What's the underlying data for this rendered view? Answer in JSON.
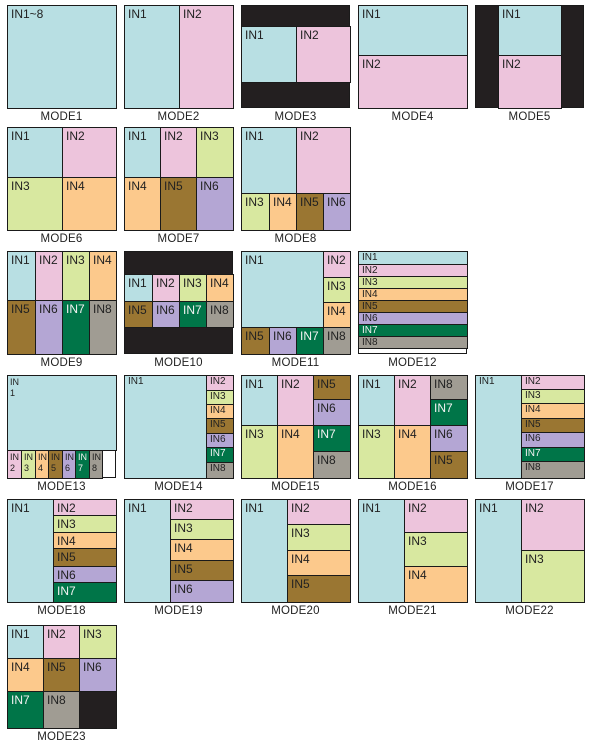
{
  "colors": {
    "IN1": "#b8dfe3",
    "IN2": "#edc4dc",
    "IN3": "#d8e8a0",
    "IN4": "#fcc98c",
    "IN5": "#9a7632",
    "IN6": "#b4a6d4",
    "IN7": "#007548",
    "IN8": "#a09c93",
    "black": "#231f20"
  },
  "modes": [
    {
      "caption": "MODE1",
      "cells": [
        {
          "label": "IN1~8",
          "color": "IN1"
        }
      ]
    },
    {
      "caption": "MODE2",
      "cells": [
        {
          "label": "IN1",
          "color": "IN1"
        },
        {
          "label": "IN2",
          "color": "IN2"
        }
      ]
    },
    {
      "caption": "MODE3",
      "cells": [
        {
          "label": "IN1",
          "color": "IN1"
        },
        {
          "label": "IN2",
          "color": "IN2"
        }
      ]
    },
    {
      "caption": "MODE4",
      "cells": [
        {
          "label": "IN1",
          "color": "IN1"
        },
        {
          "label": "IN2",
          "color": "IN2"
        }
      ]
    },
    {
      "caption": "MODE5",
      "cells": [
        {
          "label": "IN1",
          "color": "IN1"
        },
        {
          "label": "IN2",
          "color": "IN2"
        }
      ]
    },
    {
      "caption": "MODE6",
      "cells": [
        {
          "label": "IN1",
          "color": "IN1"
        },
        {
          "label": "IN2",
          "color": "IN2"
        },
        {
          "label": "IN3",
          "color": "IN3"
        },
        {
          "label": "IN4",
          "color": "IN4"
        }
      ]
    },
    {
      "caption": "MODE7",
      "cells": [
        {
          "label": "IN1",
          "color": "IN1"
        },
        {
          "label": "IN2",
          "color": "IN2"
        },
        {
          "label": "IN3",
          "color": "IN3"
        },
        {
          "label": "IN4",
          "color": "IN4"
        },
        {
          "label": "IN5",
          "color": "IN5"
        },
        {
          "label": "IN6",
          "color": "IN6"
        }
      ]
    },
    {
      "caption": "MODE8",
      "cells": [
        {
          "label": "IN1",
          "color": "IN1"
        },
        {
          "label": "IN2",
          "color": "IN2"
        },
        {
          "label": "IN3",
          "color": "IN3"
        },
        {
          "label": "IN4",
          "color": "IN4"
        },
        {
          "label": "IN5",
          "color": "IN5"
        },
        {
          "label": "IN6",
          "color": "IN6"
        }
      ]
    },
    {
      "caption": "MODE9",
      "cells": [
        {
          "label": "IN1",
          "color": "IN1"
        },
        {
          "label": "IN2",
          "color": "IN2"
        },
        {
          "label": "IN3",
          "color": "IN3"
        },
        {
          "label": "IN4",
          "color": "IN4"
        },
        {
          "label": "IN5",
          "color": "IN5"
        },
        {
          "label": "IN6",
          "color": "IN6"
        },
        {
          "label": "IN7",
          "color": "IN7"
        },
        {
          "label": "IN8",
          "color": "IN8"
        }
      ]
    },
    {
      "caption": "MODE10",
      "cells": [
        {
          "label": "IN1",
          "color": "IN1"
        },
        {
          "label": "IN2",
          "color": "IN2"
        },
        {
          "label": "IN3",
          "color": "IN3"
        },
        {
          "label": "IN4",
          "color": "IN4"
        },
        {
          "label": "IN5",
          "color": "IN5"
        },
        {
          "label": "IN6",
          "color": "IN6"
        },
        {
          "label": "IN7",
          "color": "IN7"
        },
        {
          "label": "IN8",
          "color": "IN8"
        }
      ]
    },
    {
      "caption": "MODE11",
      "cells": [
        {
          "label": "IN1",
          "color": "IN1"
        },
        {
          "label": "IN2",
          "color": "IN2"
        },
        {
          "label": "IN3",
          "color": "IN3"
        },
        {
          "label": "IN4",
          "color": "IN4"
        },
        {
          "label": "IN5",
          "color": "IN5"
        },
        {
          "label": "IN6",
          "color": "IN6"
        },
        {
          "label": "IN7",
          "color": "IN7"
        },
        {
          "label": "IN8",
          "color": "IN8"
        }
      ]
    },
    {
      "caption": "MODE12",
      "cells": [
        {
          "label": "IN1",
          "color": "IN1"
        },
        {
          "label": "IN2",
          "color": "IN2"
        },
        {
          "label": "IN3",
          "color": "IN3"
        },
        {
          "label": "IN4",
          "color": "IN4"
        },
        {
          "label": "IN5",
          "color": "IN5"
        },
        {
          "label": "IN6",
          "color": "IN6"
        },
        {
          "label": "IN7",
          "color": "IN7"
        },
        {
          "label": "IN8",
          "color": "IN8"
        }
      ]
    },
    {
      "caption": "MODE13",
      "cells": [
        {
          "label": "IN1",
          "color": "IN1"
        },
        {
          "label": "IN2",
          "color": "IN2"
        },
        {
          "label": "IN3",
          "color": "IN3"
        },
        {
          "label": "IN4",
          "color": "IN4"
        },
        {
          "label": "IN5",
          "color": "IN5"
        },
        {
          "label": "IN6",
          "color": "IN6"
        },
        {
          "label": "IN7",
          "color": "IN7"
        },
        {
          "label": "IN8",
          "color": "IN8"
        }
      ]
    },
    {
      "caption": "MODE14",
      "cells": [
        {
          "label": "IN1",
          "color": "IN1"
        },
        {
          "label": "IN2",
          "color": "IN2"
        },
        {
          "label": "IN3",
          "color": "IN3"
        },
        {
          "label": "IN4",
          "color": "IN4"
        },
        {
          "label": "IN5",
          "color": "IN5"
        },
        {
          "label": "IN6",
          "color": "IN6"
        },
        {
          "label": "IN7",
          "color": "IN7"
        },
        {
          "label": "IN8",
          "color": "IN8"
        }
      ]
    },
    {
      "caption": "MODE15",
      "cells": [
        {
          "label": "IN1",
          "color": "IN1"
        },
        {
          "label": "IN2",
          "color": "IN2"
        },
        {
          "label": "IN5",
          "color": "IN5"
        },
        {
          "label": "IN6",
          "color": "IN6"
        },
        {
          "label": "IN3",
          "color": "IN3"
        },
        {
          "label": "IN4",
          "color": "IN4"
        },
        {
          "label": "IN7",
          "color": "IN7"
        },
        {
          "label": "IN8",
          "color": "IN8"
        }
      ]
    },
    {
      "caption": "MODE16",
      "cells": [
        {
          "label": "IN1",
          "color": "IN1"
        },
        {
          "label": "IN2",
          "color": "IN2"
        },
        {
          "label": "IN8",
          "color": "IN8"
        },
        {
          "label": "IN7",
          "color": "IN7"
        },
        {
          "label": "IN3",
          "color": "IN3"
        },
        {
          "label": "IN4",
          "color": "IN4"
        },
        {
          "label": "IN6",
          "color": "IN6"
        },
        {
          "label": "IN5",
          "color": "IN5"
        }
      ]
    },
    {
      "caption": "MODE17",
      "cells": [
        {
          "label": "IN1",
          "color": "IN1"
        },
        {
          "label": "IN2",
          "color": "IN2"
        },
        {
          "label": "IN3",
          "color": "IN3"
        },
        {
          "label": "IN4",
          "color": "IN4"
        },
        {
          "label": "IN5",
          "color": "IN5"
        },
        {
          "label": "IN6",
          "color": "IN6"
        },
        {
          "label": "IN7",
          "color": "IN7"
        },
        {
          "label": "IN8",
          "color": "IN8"
        }
      ]
    },
    {
      "caption": "MODE18",
      "cells": [
        {
          "label": "IN1",
          "color": "IN1"
        },
        {
          "label": "IN2",
          "color": "IN2"
        },
        {
          "label": "IN3",
          "color": "IN3"
        },
        {
          "label": "IN4",
          "color": "IN4"
        },
        {
          "label": "IN5",
          "color": "IN5"
        },
        {
          "label": "IN6",
          "color": "IN6"
        },
        {
          "label": "IN7",
          "color": "IN7"
        }
      ]
    },
    {
      "caption": "MODE19",
      "cells": [
        {
          "label": "IN1",
          "color": "IN1"
        },
        {
          "label": "IN2",
          "color": "IN2"
        },
        {
          "label": "IN3",
          "color": "IN3"
        },
        {
          "label": "IN4",
          "color": "IN4"
        },
        {
          "label": "IN5",
          "color": "IN5"
        },
        {
          "label": "IN6",
          "color": "IN6"
        }
      ]
    },
    {
      "caption": "MODE20",
      "cells": [
        {
          "label": "IN1",
          "color": "IN1"
        },
        {
          "label": "IN2",
          "color": "IN2"
        },
        {
          "label": "IN3",
          "color": "IN3"
        },
        {
          "label": "IN4",
          "color": "IN4"
        },
        {
          "label": "IN5",
          "color": "IN5"
        }
      ]
    },
    {
      "caption": "MODE21",
      "cells": [
        {
          "label": "IN1",
          "color": "IN1"
        },
        {
          "label": "IN2",
          "color": "IN2"
        },
        {
          "label": "IN3",
          "color": "IN3"
        },
        {
          "label": "IN4",
          "color": "IN4"
        }
      ]
    },
    {
      "caption": "MODE22",
      "cells": [
        {
          "label": "IN1",
          "color": "IN1"
        },
        {
          "label": "IN2",
          "color": "IN2"
        },
        {
          "label": "IN3",
          "color": "IN3"
        }
      ]
    },
    {
      "caption": "MODE23",
      "cells": [
        {
          "label": "IN1",
          "color": "IN1"
        },
        {
          "label": "IN2",
          "color": "IN2"
        },
        {
          "label": "IN3",
          "color": "IN3"
        },
        {
          "label": "IN4",
          "color": "IN4"
        },
        {
          "label": "IN5",
          "color": "IN5"
        },
        {
          "label": "IN6",
          "color": "IN6"
        },
        {
          "label": "IN7",
          "color": "IN7"
        },
        {
          "label": "IN8",
          "color": "IN8"
        },
        {
          "label": "",
          "color": "black"
        }
      ]
    }
  ]
}
